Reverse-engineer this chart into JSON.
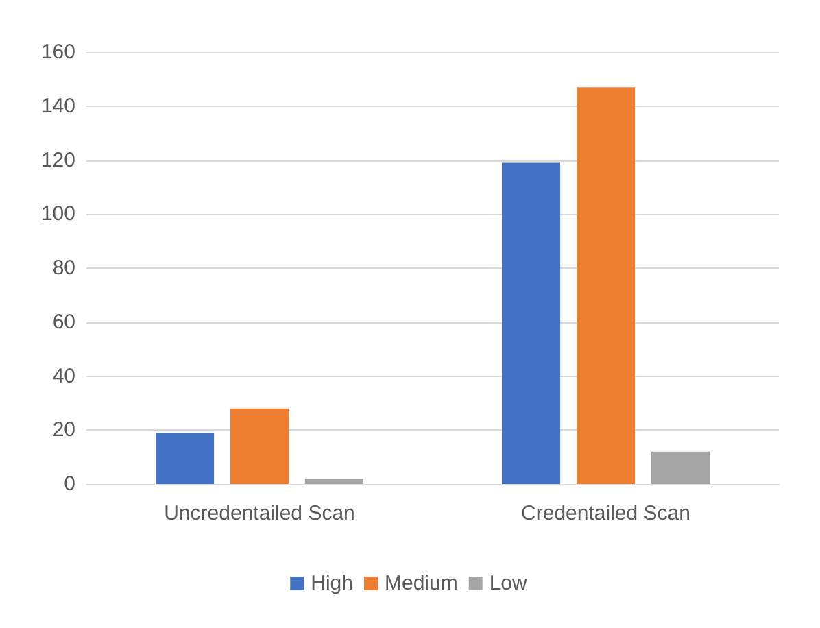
{
  "chart_data": {
    "type": "bar",
    "categories": [
      "Uncredentailed Scan",
      "Credentailed Scan"
    ],
    "series": [
      {
        "name": "High",
        "color": "#4472c4",
        "values": [
          19,
          119
        ]
      },
      {
        "name": "Medium",
        "color": "#ed7d31",
        "values": [
          28,
          147
        ]
      },
      {
        "name": "Low",
        "color": "#a5a5a5",
        "values": [
          2,
          12
        ]
      }
    ],
    "ylim": [
      0,
      160
    ],
    "yticks": [
      0,
      20,
      40,
      60,
      80,
      100,
      120,
      140,
      160
    ],
    "grid": "y",
    "legend": "bottom"
  }
}
